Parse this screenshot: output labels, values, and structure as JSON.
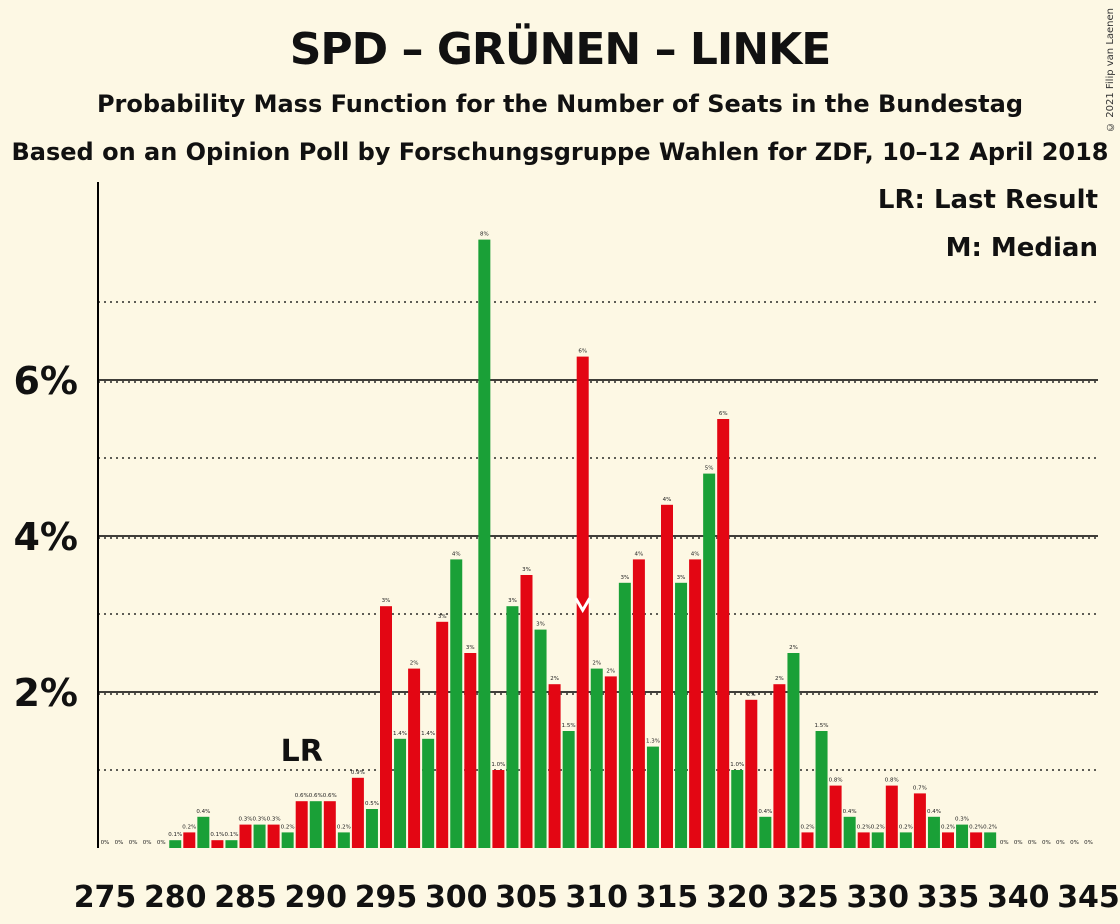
{
  "header": {
    "title": "SPD – GRÜNEN – LINKE",
    "subtitle": "Probability Mass Function for the Number of Seats in the Bundestag",
    "subtitle2": "Based on an Opinion Poll by Forschungsgruppe Wahlen for ZDF, 10–12 April 2018",
    "copyright": "© 2021 Filip van Laenen"
  },
  "legend": {
    "last_result": "LR: Last Result",
    "median": "M: Median"
  },
  "chart_data": {
    "type": "bar",
    "title": "SPD – GRÜNEN – LINKE",
    "x": [
      275,
      276,
      277,
      278,
      279,
      280,
      281,
      282,
      283,
      284,
      285,
      286,
      287,
      288,
      289,
      290,
      291,
      292,
      293,
      294,
      295,
      296,
      297,
      298,
      299,
      300,
      301,
      302,
      303,
      304,
      305,
      306,
      307,
      308,
      309,
      310,
      311,
      312,
      313,
      314,
      315,
      316,
      317,
      318,
      319,
      320,
      321,
      322,
      323,
      324,
      325,
      326,
      327,
      328,
      329,
      330,
      331,
      332,
      333,
      334,
      335,
      336,
      337,
      338,
      339,
      340,
      341,
      342,
      343,
      344,
      345
    ],
    "values": [
      0,
      0,
      0,
      0,
      0,
      0.1,
      0.2,
      0.4,
      0.1,
      0.1,
      0.3,
      0.3,
      0.3,
      0.2,
      0.6,
      0.6,
      0.6,
      0.2,
      0.9,
      0.5,
      3.1,
      1.4,
      2.3,
      1.4,
      2.9,
      3.7,
      2.5,
      7.8,
      1.0,
      3.1,
      3.5,
      2.8,
      2.1,
      1.5,
      6.3,
      2.3,
      2.2,
      3.4,
      3.7,
      1.3,
      4.4,
      3.4,
      3.7,
      4.8,
      5.5,
      1.0,
      1.9,
      0.4,
      2.1,
      2.5,
      0.2,
      1.5,
      0.8,
      0.4,
      0.2,
      0.2,
      0.8,
      0.2,
      0.7,
      0.4,
      0.2,
      0.3,
      0.2,
      0.2,
      0,
      0,
      0,
      0,
      0,
      0,
      0
    ],
    "labels": [
      "0%",
      "0%",
      "0%",
      "0%",
      "0%",
      "0.1%",
      "0.2%",
      "0.4%",
      "0.1%",
      "0.1%",
      "0.3%",
      "0.3%",
      "0.3%",
      "0.2%",
      "0.6%",
      "0.6%",
      "0.6%",
      "0.2%",
      "0.9%",
      "0.5%",
      "3%",
      "1.4%",
      "2%",
      "1.4%",
      "3%",
      "4%",
      "3%",
      "8%",
      "1.0%",
      "3%",
      "3%",
      "3%",
      "2%",
      "1.5%",
      "6%",
      "2%",
      "2%",
      "3%",
      "4%",
      "1.3%",
      "4%",
      "3%",
      "4%",
      "5%",
      "6%",
      "1.0%",
      "2%",
      "0.4%",
      "2%",
      "2%",
      "0.2%",
      "1.5%",
      "0.8%",
      "0.4%",
      "0.2%",
      "0.2%",
      "0.8%",
      "0.2%",
      "0.7%",
      "0.4%",
      "0.2%",
      "0.3%",
      "0.2%",
      "0.2%",
      "0%",
      "0%",
      "0%",
      "0%",
      "0%",
      "0%",
      "0%"
    ],
    "colors": {
      "red": "#e30613",
      "green": "#1aa037"
    },
    "color_pattern": [
      "red",
      "green"
    ],
    "x_ticks": [
      275,
      280,
      285,
      290,
      295,
      300,
      305,
      310,
      315,
      320,
      325,
      330,
      335,
      340,
      345
    ],
    "y_ticks": [
      {
        "value": 2,
        "label": "2%"
      },
      {
        "value": 4,
        "label": "4%"
      },
      {
        "value": 6,
        "label": "6%"
      }
    ],
    "ylim": [
      0,
      8.5
    ],
    "last_result": {
      "x": 290,
      "label": "LR"
    },
    "median": {
      "x": 309,
      "label": "M"
    }
  }
}
